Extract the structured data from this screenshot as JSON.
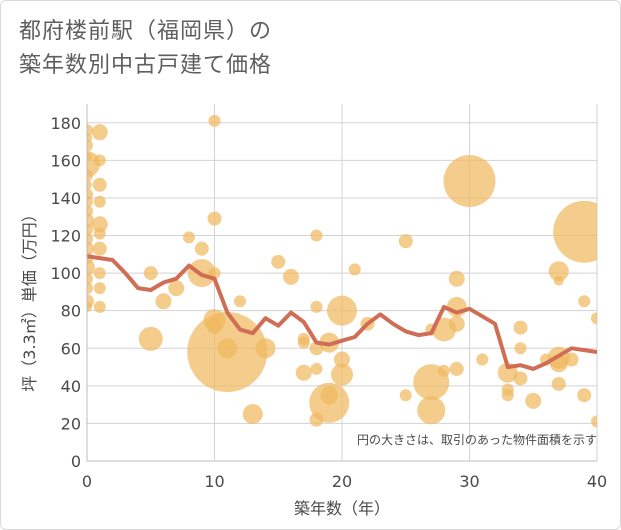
{
  "title_lines": [
    "都府楼前駅（福岡県）の",
    "築年数別中古戸建て価格"
  ],
  "chart_data": {
    "type": "scatter",
    "title": "都府楼前駅（福岡県）の築年数別中古戸建て価格",
    "xlabel": "築年数（年）",
    "ylabel": "坪（3.3㎡）単価（万円）",
    "xlim": [
      0,
      40
    ],
    "ylim": [
      0,
      190
    ],
    "x_ticks": [
      0,
      10,
      20,
      30,
      40
    ],
    "y_ticks": [
      0,
      20,
      40,
      60,
      80,
      100,
      120,
      140,
      160,
      180
    ],
    "grid": true,
    "annotation": "円の大きさは、取引のあった物件面積を示す",
    "colors": {
      "bubble": "#f0b860",
      "line": "#cf6e55",
      "grid": "#d3d3d3"
    },
    "series": [
      {
        "kind": "bubble",
        "points": [
          [
            0,
            176,
            6
          ],
          [
            0,
            172,
            5
          ],
          [
            0,
            168,
            6
          ],
          [
            0,
            162,
            5
          ],
          [
            0,
            158,
            13
          ],
          [
            0,
            152,
            6
          ],
          [
            0,
            147,
            5
          ],
          [
            0,
            142,
            6
          ],
          [
            0,
            138,
            6
          ],
          [
            0,
            133,
            6
          ],
          [
            0,
            128,
            7
          ],
          [
            0,
            123,
            6
          ],
          [
            0,
            118,
            6
          ],
          [
            0,
            113,
            7
          ],
          [
            0,
            108,
            6
          ],
          [
            0,
            103,
            8
          ],
          [
            0,
            97,
            6
          ],
          [
            0,
            92,
            6
          ],
          [
            0,
            85,
            7
          ],
          [
            0,
            82,
            5
          ],
          [
            1,
            175,
            8
          ],
          [
            1,
            160,
            6
          ],
          [
            1,
            147,
            7
          ],
          [
            1,
            138,
            6
          ],
          [
            1,
            126,
            8
          ],
          [
            1,
            121,
            6
          ],
          [
            1,
            113,
            7
          ],
          [
            1,
            100,
            6
          ],
          [
            1,
            92,
            6
          ],
          [
            1,
            82,
            6
          ],
          [
            5,
            100,
            7
          ],
          [
            5,
            65,
            12
          ],
          [
            6,
            85,
            8
          ],
          [
            7,
            92,
            8
          ],
          [
            8,
            119,
            6
          ],
          [
            9,
            113,
            7
          ],
          [
            9,
            100,
            14
          ],
          [
            10,
            181,
            6
          ],
          [
            10,
            129,
            7
          ],
          [
            10,
            100,
            6
          ],
          [
            10,
            75,
            11
          ],
          [
            10,
            72,
            8
          ],
          [
            11,
            58,
            40
          ],
          [
            11,
            60,
            10
          ],
          [
            12,
            85,
            6
          ],
          [
            13,
            25,
            10
          ],
          [
            14,
            60,
            10
          ],
          [
            15,
            106,
            7
          ],
          [
            16,
            98,
            8
          ],
          [
            17,
            63,
            6
          ],
          [
            17,
            65,
            6
          ],
          [
            17,
            47,
            8
          ],
          [
            18,
            120,
            6
          ],
          [
            18,
            82,
            6
          ],
          [
            18,
            60,
            7
          ],
          [
            18,
            49,
            6
          ],
          [
            18,
            22,
            7
          ],
          [
            19,
            31,
            20
          ],
          [
            19,
            35,
            9
          ],
          [
            19,
            63,
            10
          ],
          [
            20,
            80,
            15
          ],
          [
            20,
            54,
            8
          ],
          [
            20,
            46,
            11
          ],
          [
            21,
            102,
            6
          ],
          [
            22,
            73,
            7
          ],
          [
            25,
            117,
            7
          ],
          [
            25,
            35,
            6
          ],
          [
            27,
            70,
            6
          ],
          [
            27,
            42,
            18
          ],
          [
            27,
            27,
            14
          ],
          [
            28,
            48,
            6
          ],
          [
            28,
            70,
            12
          ],
          [
            29,
            97,
            8
          ],
          [
            29,
            73,
            8
          ],
          [
            29,
            82,
            10
          ],
          [
            29,
            49,
            7
          ],
          [
            30,
            149,
            26
          ],
          [
            31,
            54,
            6
          ],
          [
            33,
            47,
            10
          ],
          [
            33,
            38,
            6
          ],
          [
            33,
            35,
            6
          ],
          [
            34,
            71,
            7
          ],
          [
            34,
            60,
            6
          ],
          [
            34,
            44,
            7
          ],
          [
            35,
            32,
            8
          ],
          [
            36,
            54,
            6
          ],
          [
            37,
            101,
            10
          ],
          [
            37,
            96,
            5
          ],
          [
            37,
            55,
            11
          ],
          [
            37,
            52,
            9
          ],
          [
            37,
            41,
            7
          ],
          [
            38,
            54,
            7
          ],
          [
            39,
            122,
            31
          ],
          [
            39,
            85,
            6
          ],
          [
            39,
            35,
            7
          ],
          [
            40,
            76,
            6
          ],
          [
            40,
            21,
            6
          ]
        ]
      },
      {
        "kind": "line",
        "points": [
          [
            0,
            109
          ],
          [
            1,
            108
          ],
          [
            2,
            107
          ],
          [
            3,
            100
          ],
          [
            4,
            92
          ],
          [
            5,
            91
          ],
          [
            6,
            95
          ],
          [
            7,
            97
          ],
          [
            8,
            104
          ],
          [
            9,
            99
          ],
          [
            10,
            97
          ],
          [
            11,
            79
          ],
          [
            12,
            70
          ],
          [
            13,
            68
          ],
          [
            14,
            76
          ],
          [
            15,
            72
          ],
          [
            16,
            79
          ],
          [
            17,
            74
          ],
          [
            18,
            63
          ],
          [
            19,
            62
          ],
          [
            20,
            64
          ],
          [
            21,
            66
          ],
          [
            22,
            73
          ],
          [
            23,
            78
          ],
          [
            24,
            73
          ],
          [
            25,
            69
          ],
          [
            26,
            67
          ],
          [
            27,
            68
          ],
          [
            28,
            82
          ],
          [
            29,
            79
          ],
          [
            30,
            81
          ],
          [
            31,
            77
          ],
          [
            32,
            73
          ],
          [
            33,
            50
          ],
          [
            34,
            51
          ],
          [
            35,
            49
          ],
          [
            36,
            52
          ],
          [
            37,
            56
          ],
          [
            38,
            60
          ],
          [
            39,
            59
          ],
          [
            40,
            58
          ]
        ]
      }
    ]
  }
}
